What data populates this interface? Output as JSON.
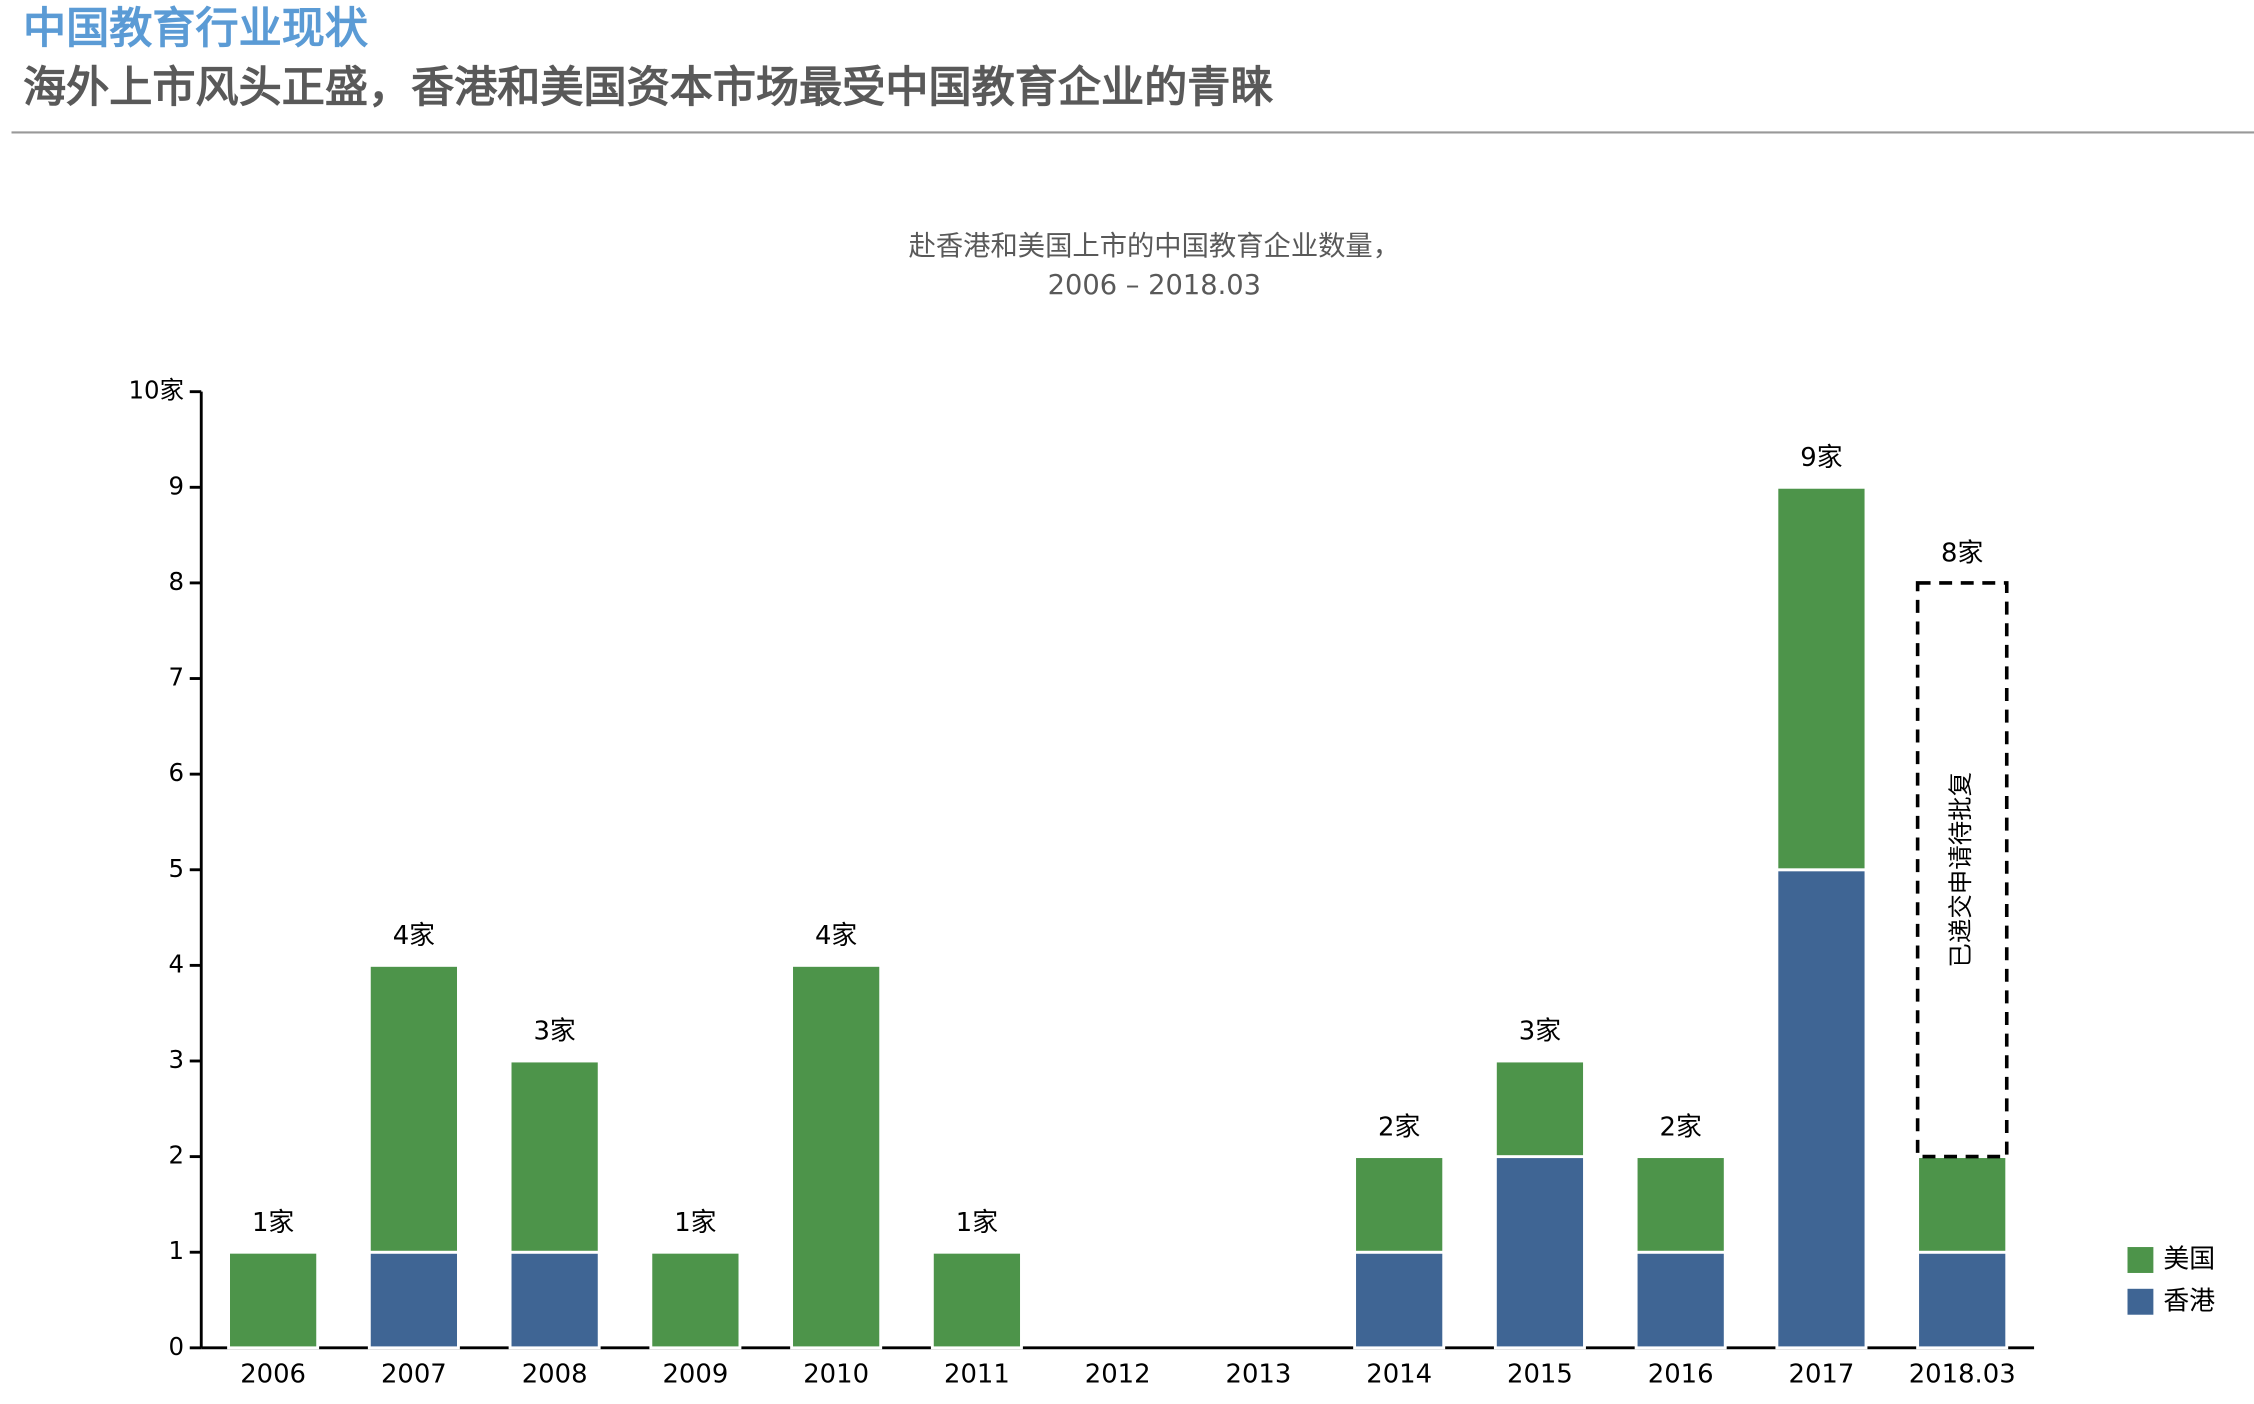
{
  "header": {
    "title": "中国教育行业现状",
    "subtitle": "海外上市风头正盛，香港和美国资本市场最受中国教育企业的青睐"
  },
  "chart_data": {
    "type": "stacked_bar",
    "title": "赴香港和美国上市的中国教育企业数量，",
    "subtitle": "2006 – 2018.03",
    "categories": [
      "2006",
      "2007",
      "2008",
      "2009",
      "2010",
      "2011",
      "2012",
      "2013",
      "2014",
      "2015",
      "2016",
      "2017",
      "2018.03"
    ],
    "series": [
      {
        "name": "香港",
        "color": "#3f6594",
        "values": [
          0,
          1,
          1,
          0,
          0,
          0,
          0,
          0,
          1,
          2,
          1,
          5,
          1
        ]
      },
      {
        "name": "美国",
        "color": "#4d944a",
        "values": [
          1,
          3,
          2,
          1,
          4,
          1,
          0,
          0,
          1,
          1,
          1,
          4,
          1
        ]
      },
      {
        "name": "已递交申请待批复",
        "style": "dashed",
        "values": [
          null,
          null,
          null,
          null,
          null,
          null,
          null,
          null,
          null,
          null,
          null,
          null,
          6
        ]
      }
    ],
    "totals": [
      1,
      4,
      3,
      1,
      4,
      1,
      null,
      null,
      2,
      3,
      2,
      9,
      8
    ],
    "value_labels": [
      "1家",
      "4家",
      "3家",
      "1家",
      "4家",
      "1家",
      null,
      null,
      "2家",
      "3家",
      "2家",
      "9家",
      "8家"
    ],
    "ylim": [
      0,
      10
    ],
    "yticks": [
      0,
      1,
      2,
      3,
      4,
      5,
      6,
      7,
      8,
      9,
      {
        "value": 10,
        "label": "10家"
      }
    ],
    "legend": "bottom-right"
  }
}
